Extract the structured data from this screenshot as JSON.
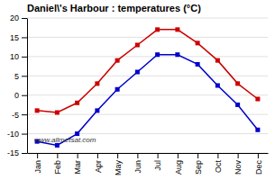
{
  "chart_data": {
    "type": "line",
    "title": "Daniel\\'s Harbour : temperatures (°C)",
    "categories": [
      "Jan",
      "Feb",
      "Mar",
      "Apr",
      "May",
      "Jun",
      "Jul",
      "Aug",
      "Sep",
      "Oct",
      "Nov",
      "Dec"
    ],
    "series": [
      {
        "color": "#cc0000",
        "marker": "square",
        "values": [
          -4,
          -4.5,
          -2,
          3,
          9,
          13,
          17,
          17,
          13.5,
          9,
          3,
          -1
        ]
      },
      {
        "color": "#0000cc",
        "marker": "square",
        "values": [
          -12,
          -13,
          -10,
          -4,
          1.5,
          6,
          10.5,
          10.5,
          8,
          2.5,
          -2.5,
          -9
        ]
      }
    ],
    "ylim": [
      -15,
      20
    ],
    "yticks": [
      -15,
      -10,
      -5,
      0,
      5,
      10,
      15,
      20
    ],
    "grid": true,
    "annotation": "www.allmetsat.com"
  }
}
